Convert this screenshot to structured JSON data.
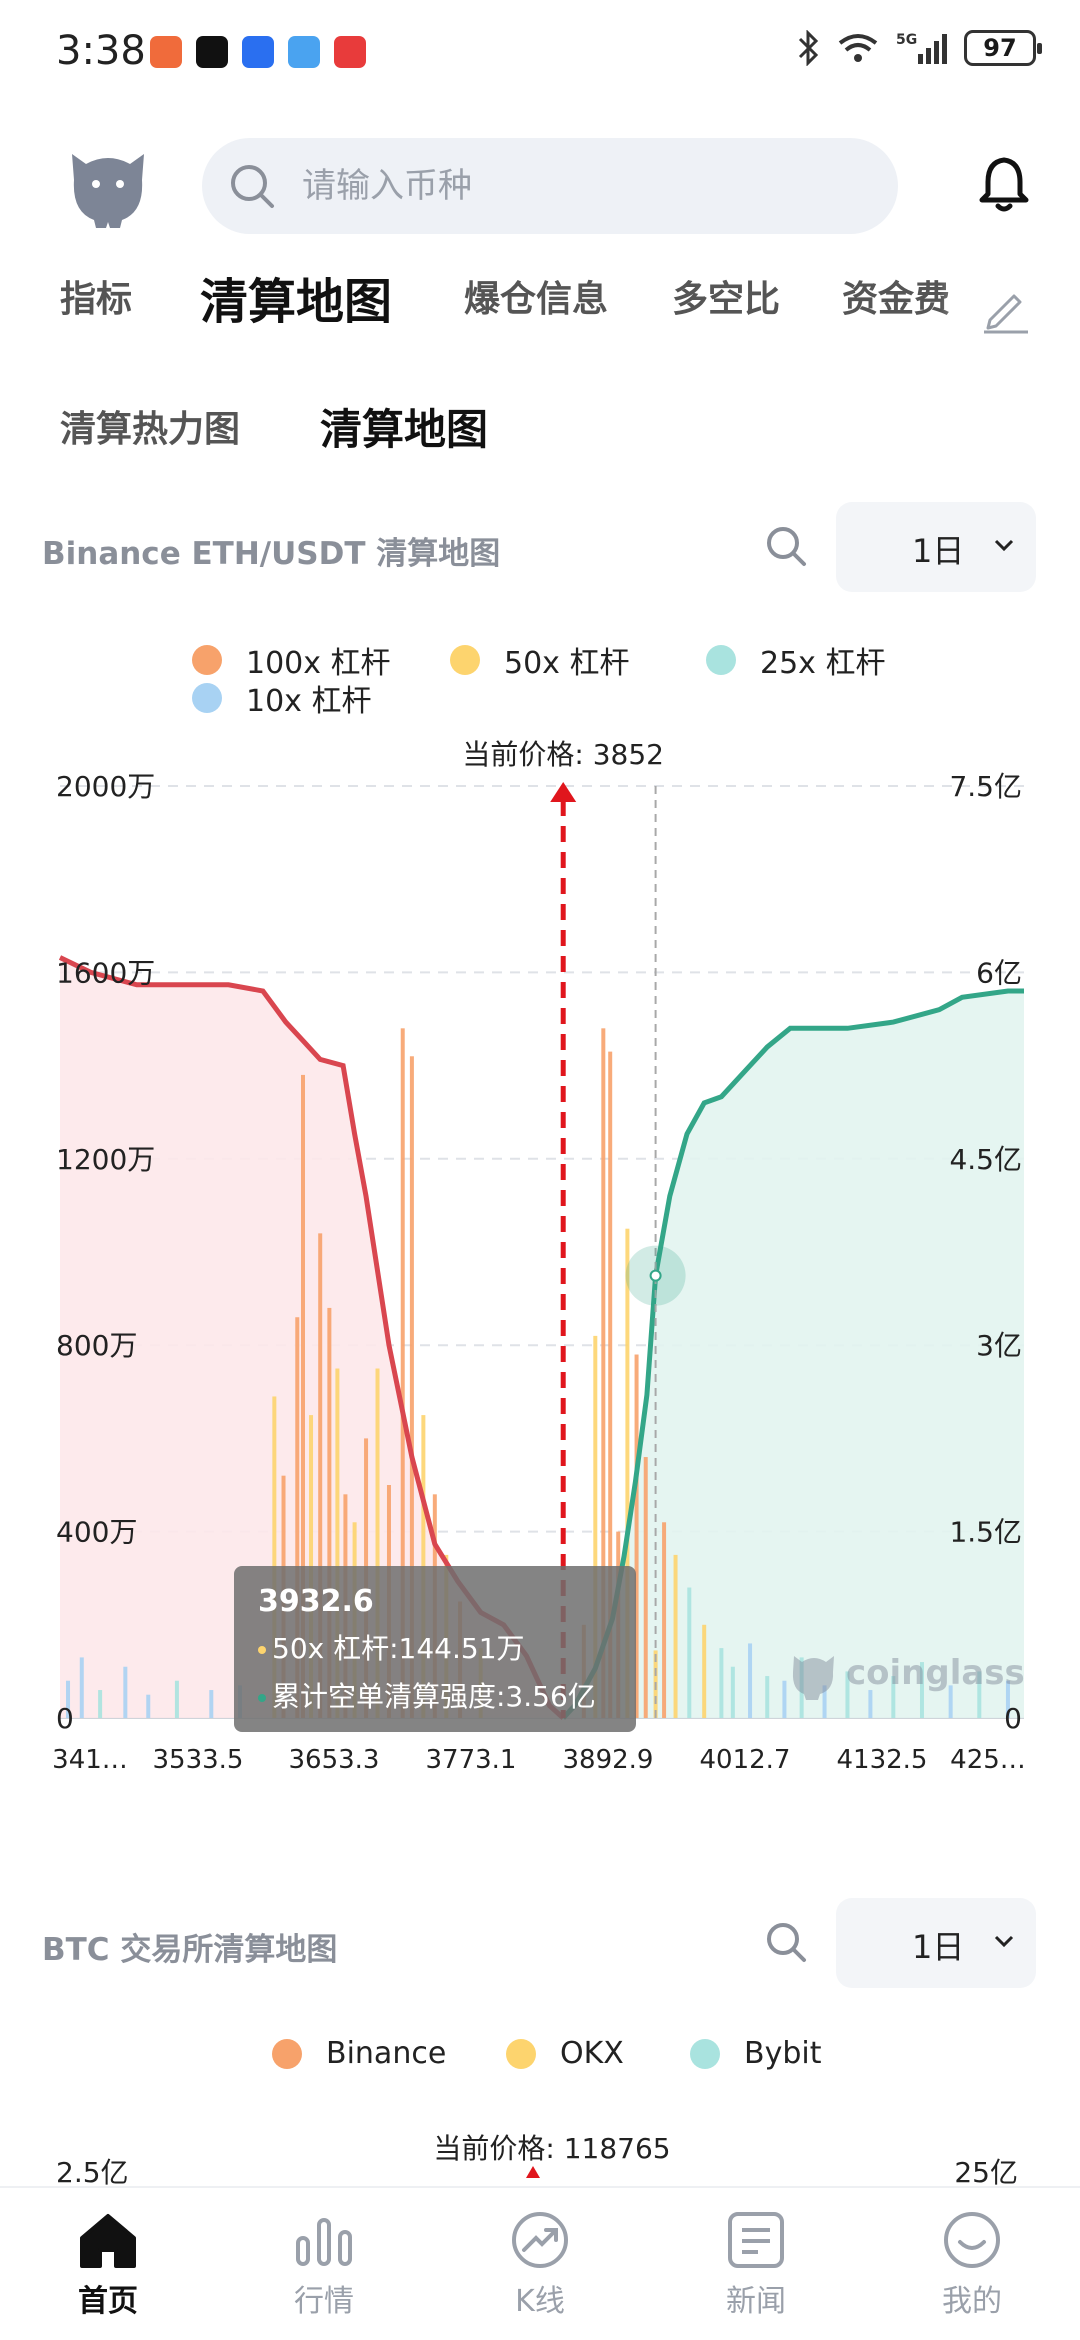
{
  "status_bar": {
    "time": "3:38",
    "battery": "97"
  },
  "search": {
    "placeholder": "请输入币种"
  },
  "tabs": [
    {
      "label": "指标"
    },
    {
      "label": "清算地图",
      "active": true
    },
    {
      "label": "爆仓信息"
    },
    {
      "label": "多空比"
    },
    {
      "label": "资金费"
    }
  ],
  "subtabs": [
    {
      "label": "清算热力图"
    },
    {
      "label": "清算地图",
      "active": true
    }
  ],
  "chart1": {
    "title": "Binance ETH/USDT 清算地图",
    "period": "1日",
    "legend": [
      {
        "label": "100x 杠杆",
        "color": "#f7a26b"
      },
      {
        "label": "50x 杠杆",
        "color": "#fdd46e"
      },
      {
        "label": "25x 杠杆",
        "color": "#a9e3df"
      },
      {
        "label": "10x 杠杆",
        "color": "#a8d2f3"
      }
    ],
    "current_price_label": "当前价格: 3852",
    "watermark": "coinglass",
    "tooltip": {
      "price": "3932.6",
      "line1": "50x 杠杆:144.51万",
      "line2": "累计空单清算强度:3.56亿",
      "color1": "#fdd46e",
      "color2": "#3aaa8c"
    }
  },
  "chart_data": {
    "type": "bar",
    "series": [
      {
        "name": "100x 杠杆"
      },
      {
        "name": "50x 杠杆"
      },
      {
        "name": "25x 杠杆"
      },
      {
        "name": "10x 杠杆"
      }
    ],
    "x_ticks": [
      "341…",
      "3533.5",
      "3653.3",
      "3773.1",
      "3892.9",
      "4012.7",
      "4132.5",
      "425…"
    ],
    "y_left_ticks": [
      "0",
      "400万",
      "800万",
      "1200万",
      "1600万",
      "2000万"
    ],
    "y_right_ticks": [
      "0",
      "1.5亿",
      "3亿",
      "4.5亿",
      "6亿",
      "7.5亿"
    ],
    "ylim_left": [
      0,
      20000000
    ],
    "ylim_right": [
      0,
      750000000
    ],
    "current_price": 3852,
    "long_cumulative": {
      "x": [
        3413,
        3440,
        3480,
        3520,
        3560,
        3590,
        3610,
        3625,
        3640,
        3660,
        3670,
        3680,
        3700,
        3720,
        3740,
        3760,
        3780,
        3800,
        3820,
        3840,
        3852
      ],
      "y": [
        612,
        600,
        590,
        590,
        590,
        585,
        560,
        545,
        530,
        525,
        470,
        420,
        300,
        210,
        140,
        110,
        85,
        75,
        50,
        10,
        0
      ]
    },
    "short_cumulative": {
      "x": [
        3852,
        3862,
        3880,
        3895,
        3905,
        3915,
        3925,
        3932.6,
        3945,
        3960,
        3975,
        3990,
        4010,
        4030,
        4050,
        4080,
        4100,
        4140,
        4180,
        4200,
        4240,
        4254
      ],
      "y": [
        0,
        10,
        40,
        80,
        130,
        190,
        260,
        356,
        420,
        470,
        495,
        500,
        520,
        540,
        555,
        555,
        555,
        560,
        570,
        580,
        585,
        585
      ]
    },
    "bars": [
      {
        "x": 3600,
        "v": 6.9,
        "c": "#fdd46e"
      },
      {
        "x": 3608,
        "v": 5.2,
        "c": "#f7a26b"
      },
      {
        "x": 3620,
        "v": 8.6,
        "c": "#f7a26b"
      },
      {
        "x": 3625,
        "v": 13.8,
        "c": "#f7a26b"
      },
      {
        "x": 3632,
        "v": 6.5,
        "c": "#fdd46e"
      },
      {
        "x": 3640,
        "v": 10.4,
        "c": "#f7a26b"
      },
      {
        "x": 3648,
        "v": 8.8,
        "c": "#f7a26b"
      },
      {
        "x": 3655,
        "v": 7.5,
        "c": "#fdd46e"
      },
      {
        "x": 3662,
        "v": 4.8,
        "c": "#f7a26b"
      },
      {
        "x": 3670,
        "v": 4.2,
        "c": "#fdd46e"
      },
      {
        "x": 3680,
        "v": 6.0,
        "c": "#f7a26b"
      },
      {
        "x": 3690,
        "v": 7.5,
        "c": "#fdd46e"
      },
      {
        "x": 3700,
        "v": 5.0,
        "c": "#f7a26b"
      },
      {
        "x": 3712,
        "v": 14.8,
        "c": "#f7a26b"
      },
      {
        "x": 3720,
        "v": 14.2,
        "c": "#f7a26b"
      },
      {
        "x": 3730,
        "v": 6.5,
        "c": "#fdd46e"
      },
      {
        "x": 3740,
        "v": 4.8,
        "c": "#f7a26b"
      },
      {
        "x": 3750,
        "v": 3.5,
        "c": "#fdd46e"
      },
      {
        "x": 3762,
        "v": 2.5,
        "c": "#f7a26b"
      },
      {
        "x": 3780,
        "v": 1.5,
        "c": "#fdd46e"
      },
      {
        "x": 3870,
        "v": 2.0,
        "c": "#f7a26b"
      },
      {
        "x": 3880,
        "v": 8.2,
        "c": "#fdd46e"
      },
      {
        "x": 3887,
        "v": 14.8,
        "c": "#f7a26b"
      },
      {
        "x": 3893,
        "v": 14.3,
        "c": "#f7a26b"
      },
      {
        "x": 3900,
        "v": 4.0,
        "c": "#f7a26b"
      },
      {
        "x": 3908,
        "v": 10.5,
        "c": "#fdd46e"
      },
      {
        "x": 3916,
        "v": 7.8,
        "c": "#f7a26b"
      },
      {
        "x": 3924,
        "v": 5.6,
        "c": "#f7a26b"
      },
      {
        "x": 3932.6,
        "v": 1.45,
        "c": "#fdd46e"
      },
      {
        "x": 3940,
        "v": 4.2,
        "c": "#f7a26b"
      },
      {
        "x": 3950,
        "v": 3.5,
        "c": "#fdd46e"
      },
      {
        "x": 3962,
        "v": 2.8,
        "c": "#a9e3df"
      },
      {
        "x": 3975,
        "v": 2.0,
        "c": "#fdd46e"
      },
      {
        "x": 3990,
        "v": 1.5,
        "c": "#a9e3df"
      },
      {
        "x": 4000,
        "v": 1.1,
        "c": "#a9e3df"
      },
      {
        "x": 4015,
        "v": 1.6,
        "c": "#a8d2f3"
      },
      {
        "x": 4030,
        "v": 0.9,
        "c": "#a9e3df"
      },
      {
        "x": 4045,
        "v": 0.8,
        "c": "#a8d2f3"
      },
      {
        "x": 4060,
        "v": 1.3,
        "c": "#a9e3df"
      },
      {
        "x": 4080,
        "v": 0.7,
        "c": "#a8d2f3"
      },
      {
        "x": 4100,
        "v": 1.0,
        "c": "#a9e3df"
      },
      {
        "x": 4120,
        "v": 0.6,
        "c": "#a8d2f3"
      },
      {
        "x": 4140,
        "v": 0.9,
        "c": "#a9e3df"
      },
      {
        "x": 4165,
        "v": 1.2,
        "c": "#a9e3df"
      },
      {
        "x": 4190,
        "v": 0.7,
        "c": "#a8d2f3"
      },
      {
        "x": 4215,
        "v": 1.0,
        "c": "#a9e3df"
      },
      {
        "x": 4240,
        "v": 0.8,
        "c": "#a8d2f3"
      },
      {
        "x": 3420,
        "v": 0.8,
        "c": "#a8d2f3"
      },
      {
        "x": 3432,
        "v": 1.3,
        "c": "#a8d2f3"
      },
      {
        "x": 3448,
        "v": 0.6,
        "c": "#a9e3df"
      },
      {
        "x": 3470,
        "v": 1.1,
        "c": "#a8d2f3"
      },
      {
        "x": 3490,
        "v": 0.5,
        "c": "#a8d2f3"
      },
      {
        "x": 3515,
        "v": 0.8,
        "c": "#a9e3df"
      },
      {
        "x": 3545,
        "v": 0.6,
        "c": "#a8d2f3"
      },
      {
        "x": 3570,
        "v": 0.7,
        "c": "#a8d2f3"
      }
    ]
  },
  "chart2": {
    "title": "BTC 交易所清算地图",
    "period": "1日",
    "legend": [
      {
        "label": "Binance",
        "color": "#f7a26b"
      },
      {
        "label": "OKX",
        "color": "#fdd46e"
      },
      {
        "label": "Bybit",
        "color": "#a9e3df"
      }
    ],
    "current_price_label": "当前价格: 118765",
    "y_left_top": "2.5亿",
    "y_right_top": "25亿"
  },
  "nav": [
    {
      "label": "首页",
      "active": true
    },
    {
      "label": "行情"
    },
    {
      "label": "K线"
    },
    {
      "label": "新闻"
    },
    {
      "label": "我的"
    }
  ]
}
